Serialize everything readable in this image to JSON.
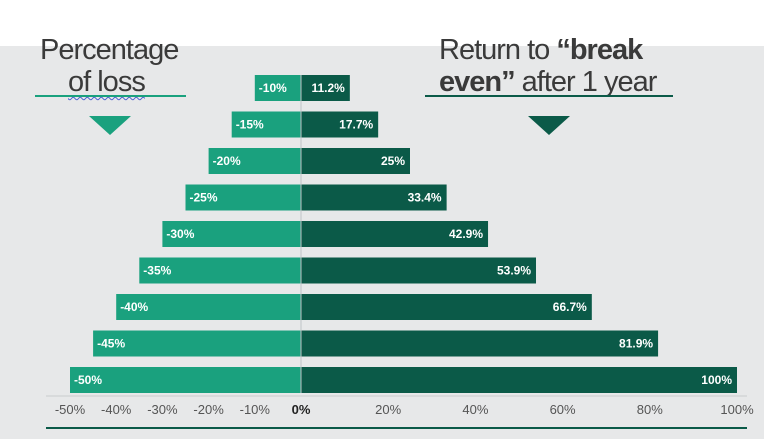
{
  "headings": {
    "left_line1": "Percentage",
    "left_line2": "of loss",
    "right_line1_pre": "Return to ",
    "right_line1_bold": "“break",
    "right_line2_bold": "even”",
    "right_line2_post": " after 1 year"
  },
  "colors": {
    "loss_bar": "#1aa17e",
    "return_bar": "#0b5a48",
    "accent_left": "#1aa17e",
    "accent_right": "#0b5a48"
  },
  "chart_data": {
    "type": "bar",
    "orientation": "horizontal",
    "categories": [
      "-10%",
      "-15%",
      "-20%",
      "-25%",
      "-30%",
      "-35%",
      "-40%",
      "-45%",
      "-50%"
    ],
    "series": [
      {
        "name": "Percentage of loss",
        "values": [
          -10,
          -15,
          -20,
          -25,
          -30,
          -35,
          -40,
          -45,
          -50
        ],
        "labels": [
          "-10%",
          "-15%",
          "-20%",
          "-25%",
          "-30%",
          "-35%",
          "-40%",
          "-45%",
          "-50%"
        ]
      },
      {
        "name": "Return to “break even” after 1 year",
        "values": [
          11.2,
          17.7,
          25,
          33.4,
          42.9,
          53.9,
          66.7,
          81.9,
          100
        ],
        "labels": [
          "11.2%",
          "17.7%",
          "25%",
          "33.4%",
          "42.9%",
          "53.9%",
          "66.7%",
          "81.9%",
          "100%"
        ]
      }
    ],
    "xlim": [
      -55,
      100
    ],
    "xticks": [
      -50,
      -40,
      -30,
      -20,
      -10,
      0,
      20,
      40,
      60,
      80,
      100
    ],
    "xtick_labels": [
      "-50%",
      "-40%",
      "-30%",
      "-20%",
      "-10%",
      "0%",
      "20%",
      "40%",
      "60%",
      "80%",
      "100%"
    ],
    "grid": false
  }
}
